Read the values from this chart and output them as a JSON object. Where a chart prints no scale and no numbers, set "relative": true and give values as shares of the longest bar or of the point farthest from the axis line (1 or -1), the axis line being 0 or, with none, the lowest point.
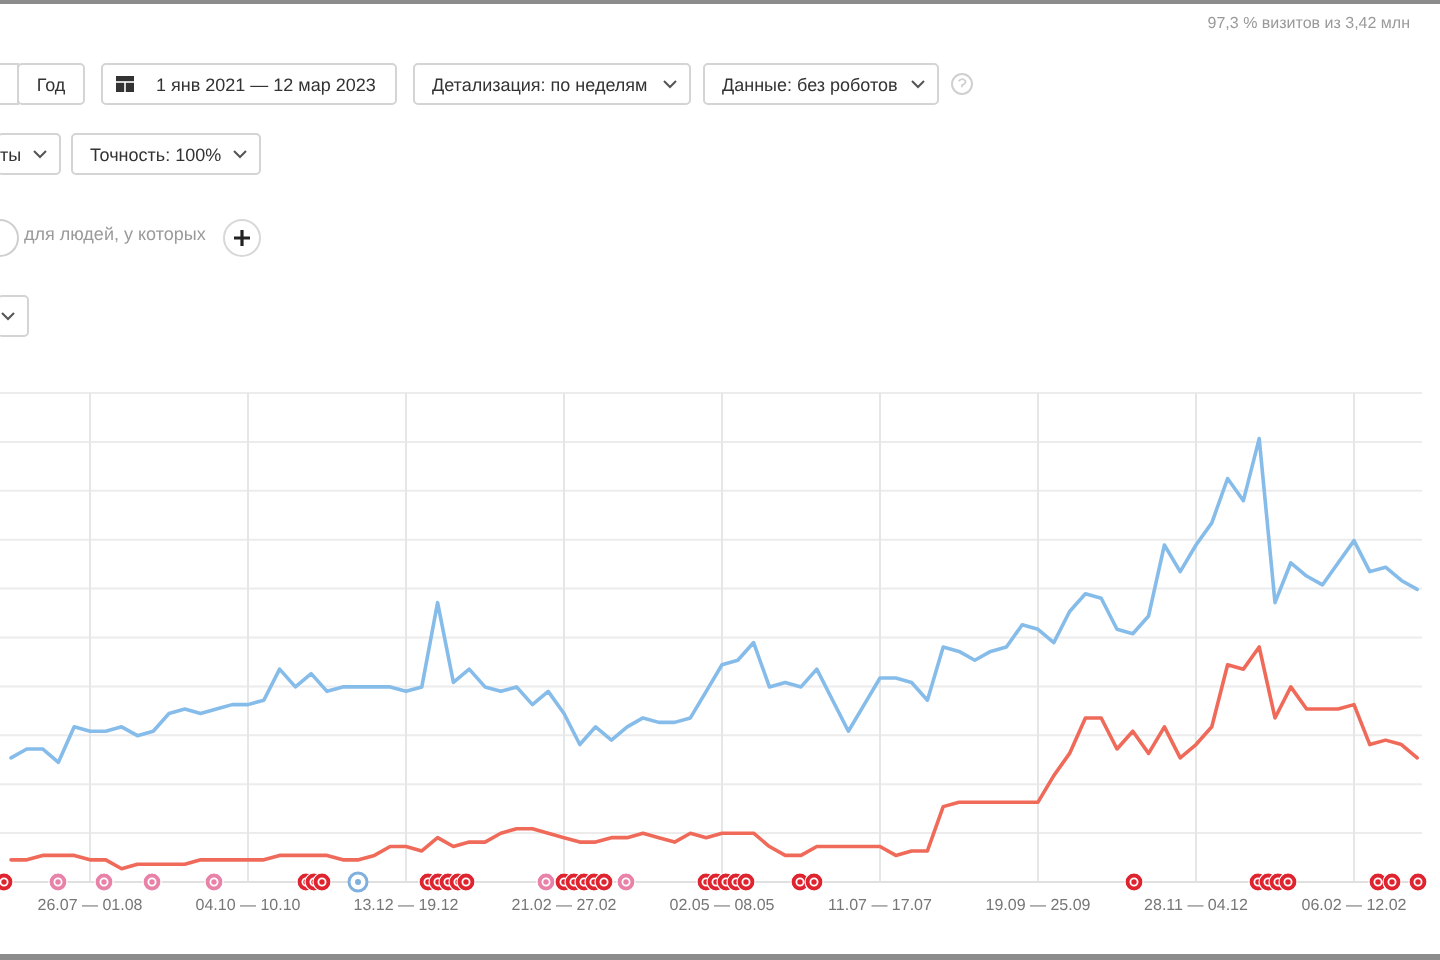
{
  "chart_data": {
    "type": "line",
    "relative": true,
    "grid": true,
    "categories": [
      null,
      null,
      null,
      null,
      null,
      "26.07 — 01.08",
      null,
      null,
      null,
      null,
      null,
      null,
      null,
      null,
      null,
      "04.10 — 10.10",
      null,
      null,
      null,
      null,
      null,
      null,
      null,
      null,
      null,
      "13.12 — 19.12",
      null,
      null,
      null,
      null,
      null,
      null,
      null,
      null,
      null,
      "21.02 — 27.02",
      null,
      null,
      null,
      null,
      null,
      null,
      null,
      null,
      null,
      "02.05 — 08.05",
      null,
      null,
      null,
      null,
      null,
      null,
      null,
      null,
      null,
      "11.07 — 17.07",
      null,
      null,
      null,
      null,
      null,
      null,
      null,
      null,
      null,
      "19.09 — 25.09",
      null,
      null,
      null,
      null,
      null,
      null,
      null,
      null,
      null,
      "28.11 — 04.12",
      null,
      null,
      null,
      null,
      null,
      null,
      null,
      null,
      null,
      "06.02 — 12.02",
      null,
      null,
      null,
      null
    ],
    "series": [
      {
        "color": "#86bce9",
        "values": [
          0.28,
          0.3,
          0.3,
          0.27,
          0.35,
          0.34,
          0.34,
          0.35,
          0.33,
          0.34,
          0.38,
          0.39,
          0.38,
          0.39,
          0.4,
          0.4,
          0.41,
          0.48,
          0.44,
          0.47,
          0.43,
          0.44,
          0.44,
          0.44,
          0.44,
          0.43,
          0.44,
          0.63,
          0.45,
          0.48,
          0.44,
          0.43,
          0.44,
          0.4,
          0.43,
          0.38,
          0.31,
          0.35,
          0.32,
          0.35,
          0.37,
          0.36,
          0.36,
          0.37,
          0.43,
          0.49,
          0.5,
          0.54,
          0.44,
          0.45,
          0.44,
          0.48,
          0.41,
          0.34,
          0.4,
          0.46,
          0.46,
          0.45,
          0.41,
          0.53,
          0.52,
          0.5,
          0.52,
          0.53,
          0.58,
          0.57,
          0.54,
          0.61,
          0.65,
          0.64,
          0.57,
          0.56,
          0.6,
          0.76,
          0.7,
          0.76,
          0.81,
          0.91,
          0.86,
          1.0,
          0.63,
          0.72,
          0.69,
          0.67,
          0.72,
          0.77,
          0.7,
          0.71,
          0.68,
          0.66
        ]
      },
      {
        "color": "#f06a5a",
        "values": [
          0.05,
          0.05,
          0.06,
          0.06,
          0.06,
          0.05,
          0.05,
          0.03,
          0.04,
          0.04,
          0.04,
          0.04,
          0.05,
          0.05,
          0.05,
          0.05,
          0.05,
          0.06,
          0.06,
          0.06,
          0.06,
          0.05,
          0.05,
          0.06,
          0.08,
          0.08,
          0.07,
          0.1,
          0.08,
          0.09,
          0.09,
          0.11,
          0.12,
          0.12,
          0.11,
          0.1,
          0.09,
          0.09,
          0.1,
          0.1,
          0.11,
          0.1,
          0.09,
          0.11,
          0.1,
          0.11,
          0.11,
          0.11,
          0.08,
          0.06,
          0.06,
          0.08,
          0.08,
          0.08,
          0.08,
          0.08,
          0.06,
          0.07,
          0.07,
          0.17,
          0.18,
          0.18,
          0.18,
          0.18,
          0.18,
          0.18,
          0.24,
          0.29,
          0.37,
          0.37,
          0.3,
          0.34,
          0.29,
          0.35,
          0.28,
          0.31,
          0.35,
          0.49,
          0.48,
          0.53,
          0.37,
          0.44,
          0.39,
          0.39,
          0.39,
          0.4,
          0.31,
          0.32,
          0.31,
          0.28
        ]
      }
    ],
    "annotations": [
      "97,3 % визитов из 3,42 млн",
      "Год",
      "1 янв 2021 — 12 мар 2023",
      "Детализация: по неделям",
      "Данные: без роботов",
      "ты",
      "Точность: 100%",
      "для людей, у которых"
    ]
  }
}
